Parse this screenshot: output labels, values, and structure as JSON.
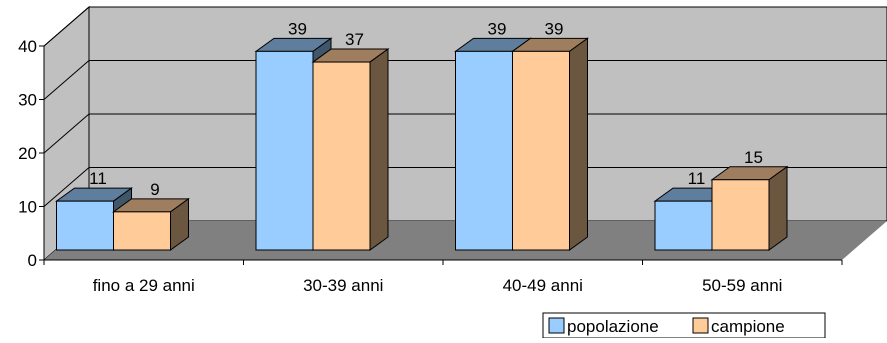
{
  "chart_data": {
    "type": "bar",
    "categories": [
      "fino a 29 anni",
      "30-39 anni",
      "40-49 anni",
      "50-59 anni"
    ],
    "series": [
      {
        "name": "popolazione",
        "values": [
          11,
          39,
          39,
          11
        ]
      },
      {
        "name": "campione",
        "values": [
          9,
          37,
          39,
          15
        ]
      }
    ],
    "data_labels": [
      [
        "11",
        "39",
        "39",
        "11"
      ],
      [
        "9",
        "37",
        "39",
        "15"
      ]
    ],
    "ylim": [
      0,
      40
    ],
    "yticks": [
      "0",
      "10",
      "20",
      "30",
      "40"
    ],
    "grid": true,
    "legend": "bottom-right",
    "colors": {
      "popolazione": "#99ccff",
      "campione": "#ffcc99",
      "walls": "#c0c0c0",
      "floor": "#808080"
    },
    "style": "3d-clustered-column"
  }
}
